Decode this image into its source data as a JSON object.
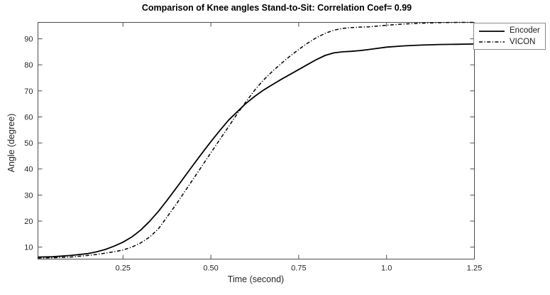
{
  "figure": {
    "title": "Comparison of Knee angles Stand-to-Sit: Correlation Coef= 0.99"
  },
  "chart_data": {
    "type": "line",
    "title": "Comparison of Knee angles Stand-to-Sit: Correlation Coef= 0.99",
    "xlabel": "Time (second)",
    "ylabel": "Angle (degree)",
    "xlim": [
      0.008,
      1.25
    ],
    "ylim": [
      5.4,
      96.3
    ],
    "grid": false,
    "box": true,
    "tick_direction": "in",
    "legend_position": "outside-top-right",
    "axis_color": "#4d4d4d",
    "xticks": {
      "values": [
        0.25,
        0.5,
        0.75,
        1.0,
        1.25
      ],
      "labels": [
        "0.25",
        "0.50",
        "0.75",
        "1.0",
        "1.25"
      ]
    },
    "yticks": {
      "values": [
        10,
        20,
        30,
        40,
        50,
        60,
        70,
        80,
        90
      ],
      "labels": [
        "10",
        "20",
        "30",
        "40",
        "50",
        "60",
        "70",
        "80",
        "90"
      ]
    },
    "series": [
      {
        "name": "Encoder",
        "line_style": "solid",
        "color": "#000000",
        "x": [
          0.008,
          0.05,
          0.1,
          0.15,
          0.175,
          0.2,
          0.225,
          0.25,
          0.275,
          0.3,
          0.325,
          0.35,
          0.375,
          0.4,
          0.425,
          0.45,
          0.475,
          0.5,
          0.525,
          0.55,
          0.575,
          0.6,
          0.625,
          0.65,
          0.675,
          0.7,
          0.725,
          0.75,
          0.775,
          0.8,
          0.825,
          0.85,
          0.875,
          0.9,
          0.925,
          0.95,
          1.0,
          1.05,
          1.1,
          1.15,
          1.2,
          1.25
        ],
        "y": [
          6.2,
          6.3,
          6.8,
          7.5,
          8.2,
          9.1,
          10.4,
          11.9,
          13.9,
          16.5,
          19.8,
          23.6,
          27.9,
          32.4,
          37.0,
          41.6,
          46.1,
          50.5,
          54.7,
          58.7,
          62.0,
          65.2,
          67.9,
          70.3,
          72.4,
          74.4,
          76.3,
          78.2,
          80.1,
          82.0,
          83.6,
          84.6,
          85.0,
          85.2,
          85.5,
          85.9,
          86.8,
          87.3,
          87.6,
          87.8,
          87.9,
          88.0
        ]
      },
      {
        "name": "VICON",
        "line_style": "dash-dot",
        "color": "#000000",
        "x": [
          0.008,
          0.05,
          0.1,
          0.15,
          0.175,
          0.2,
          0.225,
          0.25,
          0.275,
          0.3,
          0.325,
          0.35,
          0.375,
          0.4,
          0.425,
          0.45,
          0.475,
          0.5,
          0.525,
          0.55,
          0.575,
          0.6,
          0.625,
          0.65,
          0.675,
          0.7,
          0.725,
          0.75,
          0.775,
          0.8,
          0.825,
          0.85,
          0.875,
          0.9,
          0.925,
          0.95,
          1.0,
          1.05,
          1.1,
          1.15,
          1.2,
          1.25
        ],
        "y": [
          5.8,
          5.9,
          6.2,
          6.8,
          7.2,
          7.7,
          8.2,
          8.9,
          10.0,
          11.6,
          13.8,
          16.9,
          21.5,
          26.2,
          31.2,
          36.2,
          41.2,
          46.2,
          51.2,
          56.2,
          61.2,
          65.8,
          70.3,
          74.2,
          77.5,
          80.5,
          83.3,
          85.9,
          88.3,
          90.4,
          92.1,
          93.3,
          94.0,
          94.3,
          94.5,
          94.6,
          95.2,
          95.7,
          96.0,
          96.2,
          96.3,
          96.3
        ]
      }
    ]
  }
}
